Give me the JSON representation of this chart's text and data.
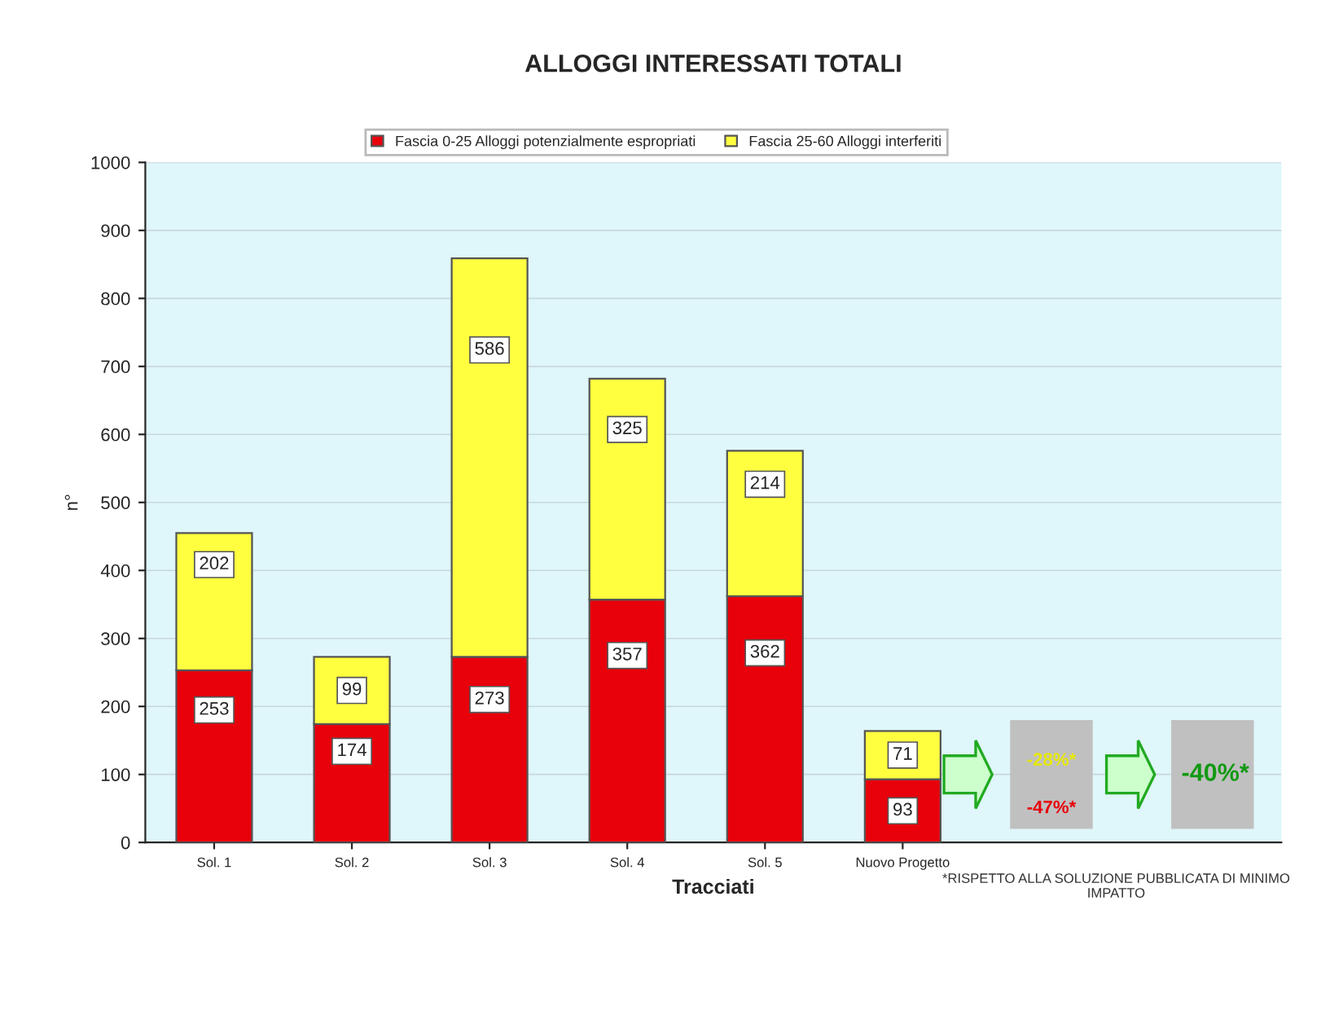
{
  "chart_data": {
    "type": "bar",
    "title": "ALLOGGI INTERESSATI TOTALI",
    "xlabel": "Tracciati",
    "ylabel": "n°",
    "categories": [
      "Sol. 1",
      "Sol. 2",
      "Sol. 3",
      "Sol. 4",
      "Sol. 5",
      "Nuovo Progetto"
    ],
    "series": [
      {
        "name": "Fascia 0-25 Alloggi potenzialmente espropriati",
        "color": "#e8000b",
        "values": [
          253,
          174,
          273,
          357,
          362,
          93
        ]
      },
      {
        "name": "Fascia 25-60 Alloggi interferiti",
        "color": "#ffff40",
        "values": [
          202,
          99,
          586,
          325,
          214,
          71
        ]
      }
    ],
    "stacked": true,
    "data_labels": true,
    "ylim": [
      0,
      1000
    ],
    "yticks": [
      0,
      100,
      200,
      300,
      400,
      500,
      600,
      700,
      800,
      900,
      1000
    ],
    "grid": "y",
    "legend": "top",
    "annotations": [
      "-28%*",
      "-47%*",
      "-40%*",
      "*RISPETTO ALLA SOLUZIONE PUBBLICATA DI MINIMO IMPATTO"
    ]
  }
}
